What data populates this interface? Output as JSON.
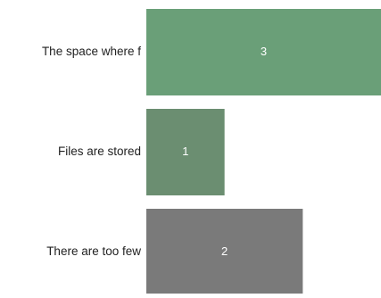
{
  "chart_data": {
    "type": "bar",
    "orientation": "horizontal",
    "categories": [
      "The space where f",
      "Files are stored",
      "There are too few"
    ],
    "values": [
      3,
      1,
      2
    ],
    "data_labels": [
      "3",
      "1",
      "2"
    ],
    "colors": [
      "#6a9f78",
      "#6b8e71",
      "#7a7a7a"
    ],
    "xlim": [
      0,
      3
    ],
    "grid": false,
    "legend": "none"
  }
}
